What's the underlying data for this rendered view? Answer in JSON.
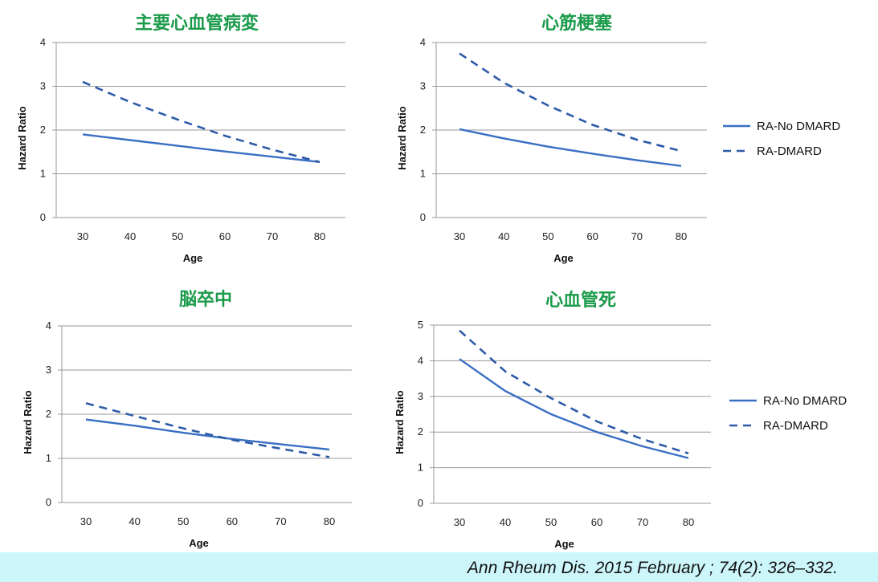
{
  "colors": {
    "title": "#1a9a4a",
    "solid_line": "#3a6fc4",
    "dashed_line": "#2e5ba8",
    "gridline": "#9a9a9a",
    "footer_bg": "#cdf6fb"
  },
  "legend": [
    {
      "name": "RA-No DMARD",
      "style": "solid"
    },
    {
      "name": "RA-DMARD",
      "style": "dashed"
    }
  ],
  "citation": "Ann Rheum Dis. 2015 February ; 74(2): 326–332.",
  "chart_data": [
    {
      "type": "line",
      "title": "主要心血管病変",
      "xlabel": "Age",
      "ylabel": "Hazard Ratio",
      "x": [
        30,
        40,
        50,
        60,
        70,
        80
      ],
      "ylim": [
        0,
        4
      ],
      "yticks": [
        0,
        1,
        2,
        3,
        4
      ],
      "grid": true,
      "legend_position": "none",
      "series": [
        {
          "name": "RA-No DMARD",
          "style": "solid",
          "values": [
            1.9,
            1.77,
            1.64,
            1.51,
            1.39,
            1.27
          ]
        },
        {
          "name": "RA-DMARD",
          "style": "dashed",
          "values": [
            3.1,
            2.64,
            2.24,
            1.87,
            1.55,
            1.27
          ]
        }
      ]
    },
    {
      "type": "line",
      "title": "心筋梗塞",
      "xlabel": "Age",
      "ylabel": "Hazard Ratio",
      "x": [
        30,
        40,
        50,
        60,
        70,
        80
      ],
      "ylim": [
        0,
        4
      ],
      "yticks": [
        0,
        1,
        2,
        3,
        4
      ],
      "grid": true,
      "legend_position": "right",
      "series": [
        {
          "name": "RA-No DMARD",
          "style": "solid",
          "values": [
            2.02,
            1.81,
            1.62,
            1.46,
            1.31,
            1.18
          ]
        },
        {
          "name": "RA-DMARD",
          "style": "dashed",
          "values": [
            3.75,
            3.08,
            2.56,
            2.12,
            1.78,
            1.52
          ]
        }
      ]
    },
    {
      "type": "line",
      "title": "脳卒中",
      "xlabel": "Age",
      "ylabel": "Hazard Ratio",
      "x": [
        30,
        40,
        50,
        60,
        70,
        80
      ],
      "ylim": [
        0,
        4
      ],
      "yticks": [
        0,
        1,
        2,
        3,
        4
      ],
      "grid": true,
      "legend_position": "none",
      "series": [
        {
          "name": "RA-No DMARD",
          "style": "solid",
          "values": [
            1.88,
            1.74,
            1.58,
            1.44,
            1.32,
            1.2
          ]
        },
        {
          "name": "RA-DMARD",
          "style": "dashed",
          "values": [
            2.25,
            1.96,
            1.68,
            1.42,
            1.22,
            1.03
          ]
        }
      ]
    },
    {
      "type": "line",
      "title": "心血管死",
      "xlabel": "Age",
      "ylabel": "Hazard Ratio",
      "x": [
        30,
        40,
        50,
        60,
        70,
        80
      ],
      "ylim": [
        0,
        5
      ],
      "yticks": [
        0,
        1,
        2,
        3,
        4,
        5
      ],
      "grid": true,
      "legend_position": "right",
      "series": [
        {
          "name": "RA-No DMARD",
          "style": "solid",
          "values": [
            4.05,
            3.15,
            2.5,
            2.0,
            1.6,
            1.27
          ]
        },
        {
          "name": "RA-DMARD",
          "style": "dashed",
          "values": [
            4.85,
            3.7,
            2.95,
            2.3,
            1.8,
            1.4
          ]
        }
      ]
    }
  ]
}
